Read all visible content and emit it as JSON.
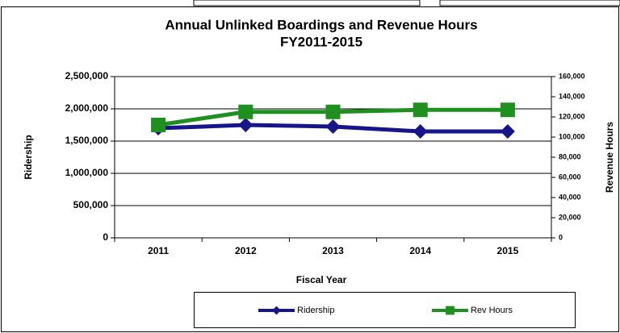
{
  "chart_data": {
    "type": "line",
    "title": "Annual Unlinked Boardings and Revenue Hours",
    "subtitle": "FY2011-2015",
    "x_label": "Fiscal Year",
    "y_label": "Ridership",
    "y2_label": "Revenue Hours",
    "categories": [
      "2011",
      "2012",
      "2013",
      "2014",
      "2015"
    ],
    "series": [
      {
        "name": "Ridership",
        "color": "#16168a",
        "marker": "diamond",
        "values": [
          1700000,
          1750000,
          1725000,
          1650000,
          1650000
        ]
      },
      {
        "name": "Rev Hours",
        "color": "#1f8f1f",
        "marker": "square",
        "axis": "y2",
        "values": [
          112000,
          125000,
          125000,
          127000,
          127000
        ]
      }
    ],
    "ylim": [
      0,
      2500000
    ],
    "yticks": [
      0,
      {
        "value": 500000,
        "label": "500,000"
      },
      {
        "value": 1000000,
        "label": "1,000,000"
      },
      {
        "value": 1500000,
        "label": "1,500,000"
      },
      {
        "value": 2000000,
        "label": "2,000,000"
      },
      {
        "value": 2500000,
        "label": "2,500,000"
      }
    ],
    "y2lim": [
      0,
      160000
    ],
    "y2ticks": [
      0,
      {
        "value": 20000,
        "label": "20,000"
      },
      {
        "value": 40000,
        "label": "40,000"
      },
      {
        "value": 60000,
        "label": "60,000"
      },
      {
        "value": 80000,
        "label": "80,000"
      },
      {
        "value": 100000,
        "label": "100,000"
      },
      {
        "value": 120000,
        "label": "120,000"
      },
      {
        "value": 140000,
        "label": "140,000"
      },
      {
        "value": 160000,
        "label": "160,000"
      }
    ],
    "grid": true,
    "legend": "bottom"
  }
}
